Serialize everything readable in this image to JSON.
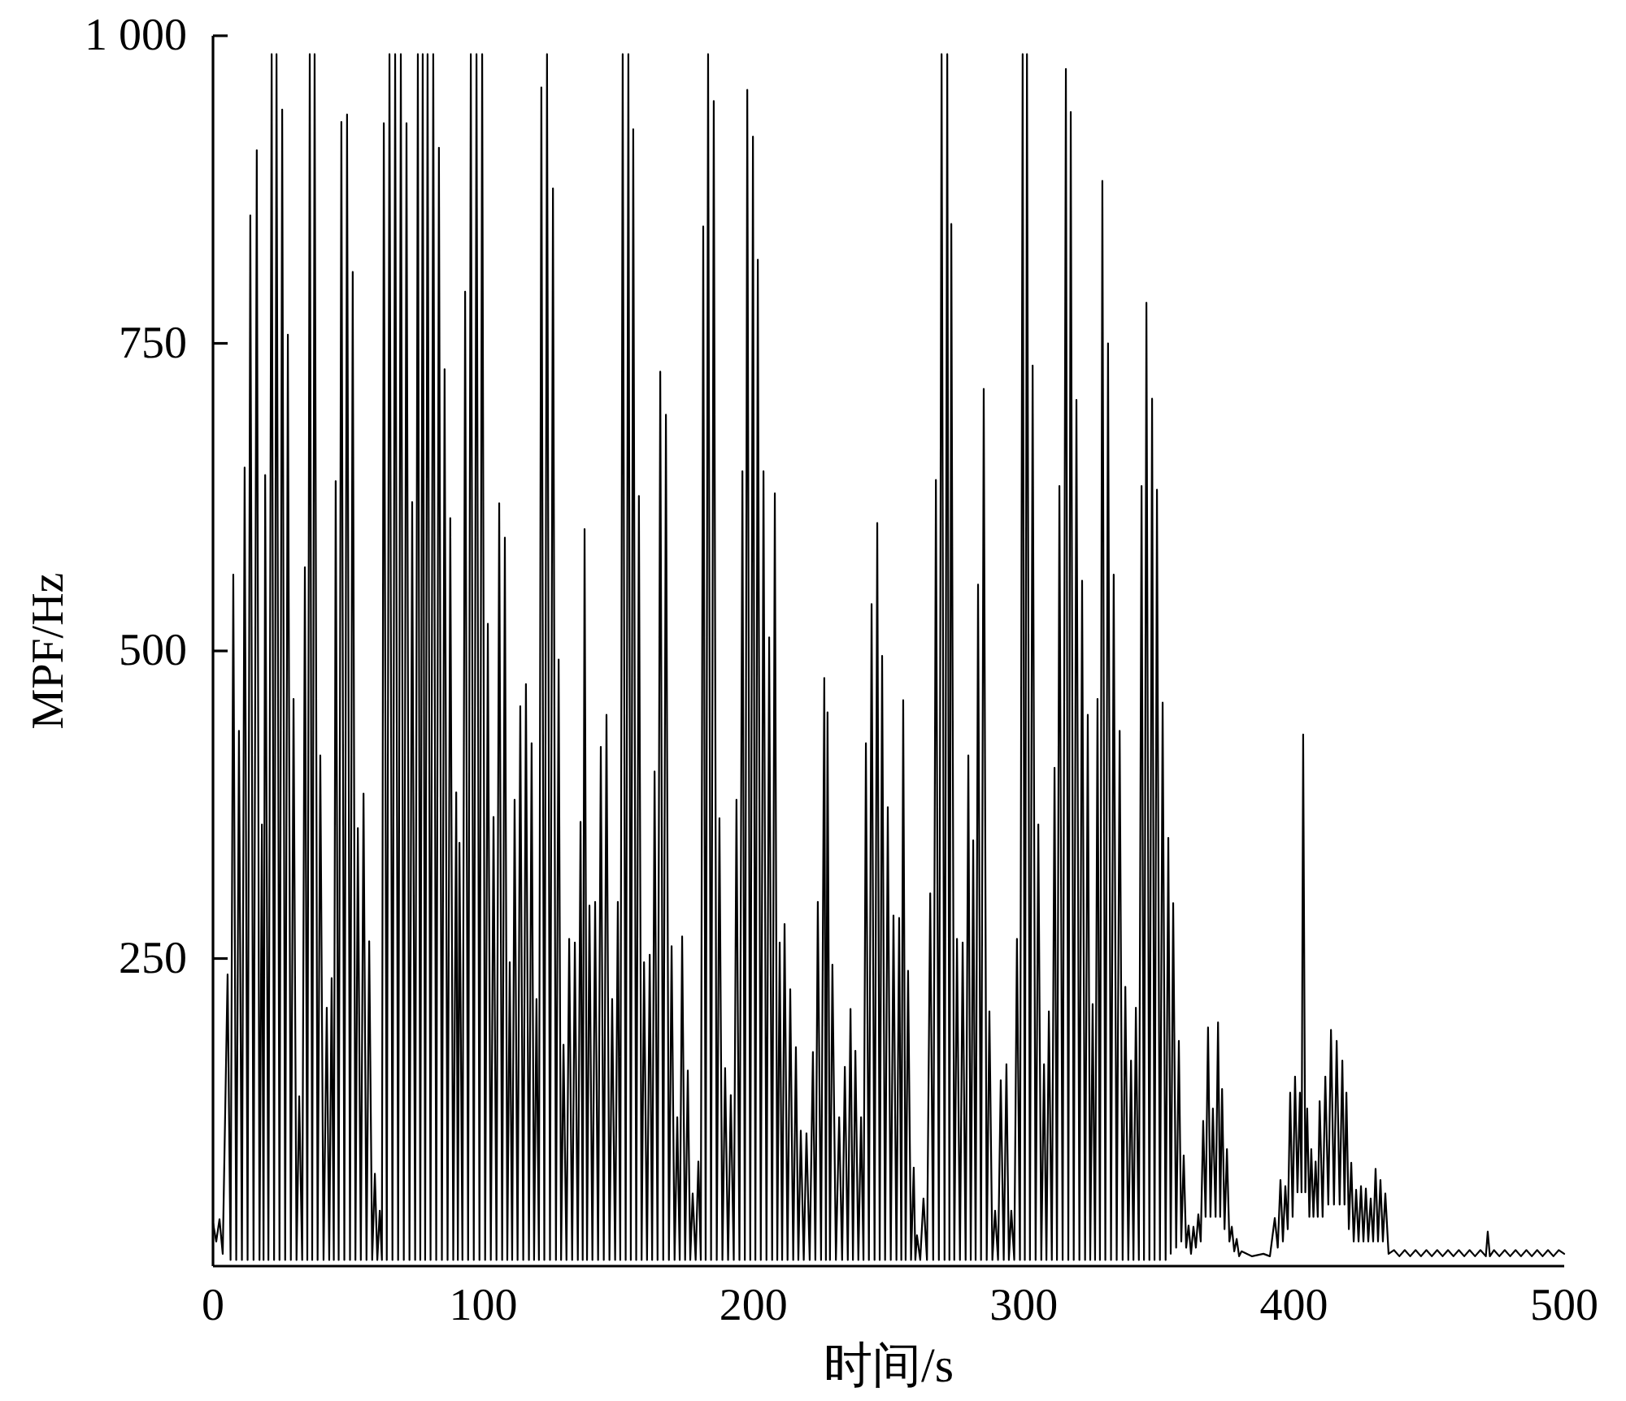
{
  "chart_data": {
    "type": "line",
    "xlabel": "时间/s",
    "ylabel": "MPF/Hz",
    "xlim": [
      0,
      500
    ],
    "ylim": [
      0,
      1000
    ],
    "xticks": [
      0,
      100,
      200,
      300,
      400,
      500
    ],
    "yticks": [
      250,
      500,
      750,
      {
        "value": 1000,
        "label": "1 000"
      }
    ],
    "line_style": "solid",
    "x": [
      0,
      1.2,
      2.4,
      3.6,
      5.4,
      6.5,
      7.5,
      8.6,
      9.6,
      10.7,
      11.7,
      12.8,
      13.8,
      15.0,
      16.2,
      17.2,
      18.1,
      18.7,
      19.3,
      20.5,
      21.7,
      22.6,
      23.5,
      24.6,
      25.6,
      26.7,
      27.7,
      28.8,
      29.8,
      30.9,
      31.9,
      33.0,
      34.0,
      34.9,
      35.8,
      36.7,
      37.6,
      38.7,
      39.7,
      40.9,
      42.1,
      43.0,
      43.9,
      44.7,
      45.4,
      46.5,
      47.5,
      48.6,
      49.6,
      50.7,
      51.7,
      52.7,
      53.6,
      54.7,
      55.7,
      56.8,
      57.8,
      58.9,
      59.9,
      60.8,
      61.7,
      62.5,
      63.2,
      64.3,
      65.3,
      66.4,
      67.4,
      68.5,
      69.5,
      70.6,
      71.6,
      72.7,
      73.7,
      74.8,
      75.8,
      76.7,
      77.6,
      78.5,
      79.4,
      80.5,
      81.5,
      82.6,
      83.6,
      84.7,
      85.7,
      86.8,
      87.8,
      88.9,
      90.0,
      90.6,
      91.2,
      92.3,
      93.3,
      94.4,
      95.4,
      96.5,
      97.5,
      98.6,
      99.6,
      100.7,
      101.7,
      102.8,
      103.8,
      104.9,
      105.9,
      107.0,
      108.0,
      108.9,
      109.8,
      110.7,
      111.6,
      112.7,
      113.7,
      114.8,
      115.8,
      116.9,
      117.9,
      118.8,
      119.7,
      120.6,
      121.5,
      122.6,
      123.6,
      124.7,
      125.8,
      126.9,
      127.9,
      128.8,
      129.7,
      130.8,
      131.8,
      132.9,
      133.9,
      135.0,
      136.0,
      136.8,
      137.5,
      138.4,
      139.3,
      140.4,
      141.4,
      142.5,
      143.5,
      144.6,
      145.6,
      146.7,
      147.7,
      148.8,
      149.8,
      150.7,
      151.6,
      152.7,
      153.7,
      154.6,
      155.5,
      156.6,
      157.6,
      158.6,
      159.5,
      160.6,
      161.6,
      162.5,
      163.4,
      164.5,
      165.5,
      166.6,
      167.6,
      168.7,
      169.7,
      170.8,
      171.8,
      172.7,
      173.6,
      174.7,
      175.7,
      176.6,
      177.5,
      178.6,
      179.6,
      180.5,
      181.4,
      182.3,
      183.2,
      184.3,
      185.3,
      186.4,
      187.4,
      188.5,
      189.5,
      190.6,
      191.6,
      192.7,
      193.7,
      194.8,
      195.9,
      196.8,
      197.7,
      198.8,
      199.8,
      200.7,
      201.6,
      202.7,
      203.7,
      204.8,
      205.8,
      206.9,
      207.9,
      208.8,
      209.7,
      210.6,
      211.5,
      212.6,
      213.6,
      214.7,
      215.7,
      216.6,
      217.5,
      218.6,
      219.6,
      220.8,
      222.0,
      222.9,
      223.8,
      225.0,
      226.2,
      226.8,
      227.4,
      228.3,
      229.2,
      230.5,
      231.7,
      232.8,
      233.8,
      234.9,
      235.9,
      236.8,
      237.7,
      238.8,
      239.8,
      240.7,
      241.6,
      242.7,
      243.7,
      244.8,
      245.8,
      246.7,
      247.6,
      248.7,
      249.7,
      250.8,
      251.8,
      252.9,
      253.9,
      254.7,
      255.4,
      256.3,
      257.2,
      258.3,
      259.3,
      259.9,
      260.5,
      261.7,
      262.9,
      264.2,
      265.4,
      266.5,
      267.5,
      268.6,
      269.6,
      270.7,
      271.7,
      272.5,
      273.2,
      274.3,
      275.3,
      276.4,
      277.4,
      278.5,
      279.5,
      280.4,
      281.3,
      282.2,
      283.1,
      284.2,
      285.2,
      286.3,
      287.3,
      288.4,
      289.4,
      290.5,
      291.5,
      292.6,
      293.6,
      294.5,
      295.4,
      296.5,
      297.5,
      298.6,
      299.6,
      300.4,
      301.2,
      302.3,
      303.3,
      304.4,
      305.4,
      306.5,
      307.5,
      308.4,
      309.3,
      310.4,
      311.4,
      312.3,
      313.2,
      314.4,
      315.6,
      316.5,
      317.4,
      318.5,
      319.5,
      320.6,
      321.6,
      322.7,
      323.7,
      324.6,
      325.5,
      326.4,
      327.3,
      328.2,
      329.1,
      330.2,
      331.2,
      332.3,
      333.3,
      334.4,
      335.5,
      336.6,
      337.6,
      338.7,
      339.7,
      340.6,
      341.5,
      342.6,
      343.6,
      344.5,
      345.4,
      346.5,
      347.5,
      348.4,
      349.3,
      350.4,
      351.4,
      352.5,
      353.5,
      354.4,
      355.3,
      356.4,
      357.4,
      358.3,
      359.2,
      360.1,
      361.0,
      361.9,
      362.8,
      363.7,
      364.6,
      365.5,
      366.4,
      367.3,
      368.2,
      369.1,
      370.0,
      371.0,
      371.9,
      372.7,
      373.4,
      374.3,
      375.2,
      376.1,
      377.0,
      377.9,
      378.8,
      379.7,
      380.6,
      384.5,
      388.7,
      391.1,
      392.9,
      394.0,
      395.0,
      395.9,
      396.8,
      397.7,
      398.6,
      399.5,
      400.4,
      401.3,
      402.2,
      402.8,
      403.4,
      404.2,
      404.9,
      405.7,
      406.4,
      407.2,
      408.0,
      408.8,
      409.5,
      410.6,
      411.6,
      412.7,
      413.7,
      414.8,
      415.8,
      416.9,
      417.9,
      418.7,
      419.4,
      420.3,
      421.2,
      422.1,
      423.0,
      423.9,
      424.8,
      425.7,
      426.6,
      427.5,
      428.4,
      429.3,
      430.2,
      431.1,
      432.0,
      432.9,
      433.8,
      435.0,
      437,
      439,
      441,
      443,
      445,
      447,
      449,
      451,
      453,
      455,
      457,
      459,
      461,
      463,
      465,
      467,
      469,
      471,
      471.7,
      472.5,
      474,
      476,
      478,
      480,
      482,
      484,
      486,
      488,
      490,
      492,
      494,
      496,
      498,
      500
    ],
    "series": [
      {
        "color": "#000000",
        "values": [
          35,
          20,
          38,
          10,
          237,
          5,
          562,
          5,
          435,
          5,
          649,
          5,
          854,
          5,
          907,
          5,
          359,
          5,
          643,
          5,
          985,
          5,
          985,
          5,
          940,
          5,
          757,
          5,
          461,
          5,
          138,
          5,
          568,
          5,
          985,
          5,
          985,
          5,
          415,
          5,
          210,
          5,
          234,
          5,
          638,
          5,
          930,
          5,
          936,
          5,
          808,
          5,
          356,
          5,
          384,
          5,
          264,
          5,
          75,
          5,
          45,
          5,
          929,
          5,
          985,
          5,
          985,
          5,
          985,
          5,
          929,
          5,
          621,
          5,
          985,
          5,
          985,
          5,
          985,
          5,
          985,
          5,
          909,
          5,
          729,
          5,
          608,
          5,
          385,
          5,
          344,
          5,
          792,
          5,
          985,
          5,
          985,
          5,
          985,
          5,
          522,
          5,
          365,
          5,
          620,
          5,
          592,
          5,
          247,
          5,
          379,
          5,
          455,
          5,
          473,
          5,
          425,
          5,
          217,
          5,
          958,
          5,
          985,
          5,
          876,
          5,
          493,
          5,
          180,
          5,
          266,
          5,
          263,
          5,
          361,
          5,
          599,
          5,
          293,
          5,
          296,
          5,
          422,
          5,
          448,
          5,
          217,
          5,
          296,
          5,
          985,
          5,
          985,
          5,
          924,
          5,
          626,
          5,
          247,
          5,
          253,
          5,
          402,
          5,
          727,
          5,
          692,
          5,
          260,
          5,
          121,
          5,
          268,
          5,
          159,
          5,
          59,
          5,
          85,
          5,
          845,
          5,
          985,
          5,
          947,
          5,
          364,
          5,
          161,
          5,
          139,
          5,
          379,
          5,
          646,
          5,
          956,
          5,
          918,
          5,
          818,
          5,
          646,
          5,
          511,
          5,
          628,
          5,
          263,
          5,
          278,
          5,
          225,
          5,
          178,
          5,
          110,
          5,
          108,
          5,
          174,
          5,
          296,
          5,
          478,
          5,
          450,
          5,
          245,
          5,
          121,
          5,
          162,
          5,
          209,
          5,
          175,
          5,
          121,
          5,
          425,
          5,
          538,
          5,
          604,
          5,
          496,
          5,
          373,
          5,
          285,
          5,
          283,
          5,
          460,
          5,
          240,
          5,
          80,
          5,
          25,
          5,
          55,
          5,
          303,
          5,
          639,
          5,
          985,
          5,
          985,
          5,
          847,
          5,
          266,
          5,
          263,
          5,
          415,
          5,
          346,
          5,
          554,
          5,
          713,
          5,
          207,
          5,
          45,
          5,
          151,
          5,
          164,
          5,
          45,
          5,
          266,
          5,
          985,
          5,
          985,
          5,
          732,
          5,
          359,
          5,
          164,
          5,
          207,
          5,
          405,
          5,
          634,
          5,
          973,
          5,
          938,
          5,
          704,
          5,
          557,
          5,
          448,
          5,
          213,
          5,
          461,
          5,
          882,
          5,
          750,
          5,
          562,
          5,
          435,
          5,
          227,
          5,
          167,
          5,
          210,
          5,
          634,
          5,
          783,
          5,
          705,
          5,
          631,
          5,
          458,
          5,
          348,
          10,
          295,
          15,
          183,
          20,
          90,
          15,
          33,
          10,
          32,
          15,
          42,
          20,
          118,
          40,
          194,
          40,
          128,
          40,
          198,
          40,
          144,
          30,
          95,
          20,
          32,
          12,
          22,
          8,
          12,
          8,
          10,
          8,
          39,
          15,
          70,
          20,
          65,
          30,
          141,
          40,
          154,
          60,
          141,
          60,
          432,
          60,
          128,
          40,
          95,
          40,
          85,
          40,
          134,
          40,
          154,
          50,
          192,
          50,
          183,
          50,
          167,
          50,
          141,
          30,
          84,
          20,
          62,
          20,
          65,
          20,
          63,
          20,
          55,
          20,
          79,
          20,
          70,
          20,
          59,
          10,
          13,
          8,
          13,
          8,
          13,
          8,
          13,
          8,
          13,
          8,
          13,
          8,
          13,
          8,
          13,
          8,
          13,
          8,
          28,
          8,
          13,
          8,
          13,
          8,
          13,
          8,
          13,
          8,
          13,
          8,
          13,
          8,
          13,
          10
        ]
      }
    ]
  }
}
